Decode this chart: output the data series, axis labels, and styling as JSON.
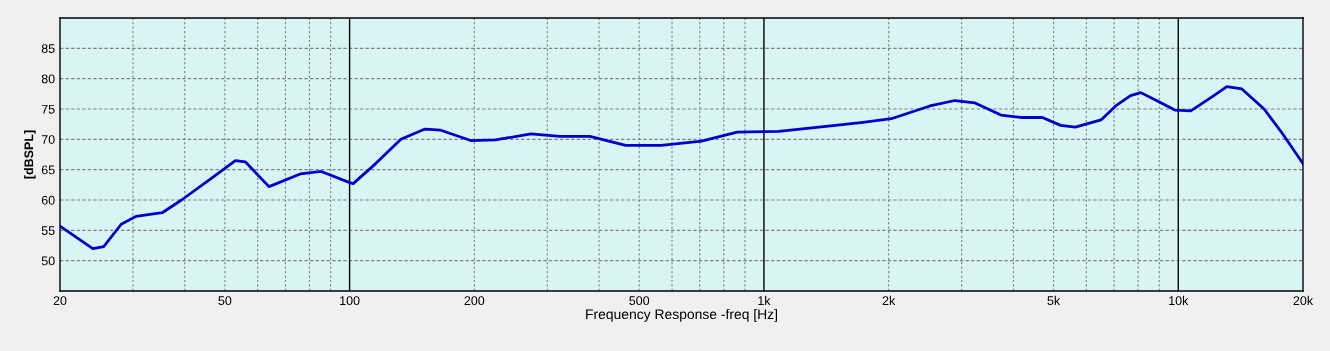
{
  "chart_data": {
    "type": "line",
    "xlabel": "Frequency Response -freq [Hz]",
    "ylabel": "[dBSPL]",
    "log": "x",
    "xlim": [
      20,
      20000
    ],
    "ylim": [
      45,
      90
    ],
    "xticks": [
      20,
      50,
      100,
      200,
      500,
      {
        "value": 1000,
        "label": "1k"
      },
      {
        "value": 2000,
        "label": "2k"
      },
      {
        "value": 5000,
        "label": "5k"
      },
      {
        "value": 10000,
        "label": "10k"
      },
      {
        "value": 20000,
        "label": "20k"
      }
    ],
    "yticks": [
      50,
      55,
      60,
      65,
      70,
      75,
      80,
      85
    ],
    "grid": true,
    "marker": "none",
    "line_style": "solid",
    "x": [
      20,
      24,
      25.5,
      28.1,
      30.5,
      35.3,
      39.3,
      46.2,
      53,
      56,
      63.9,
      76,
      85.4,
      99.7,
      102,
      115.6,
      133,
      152,
      166,
      196,
      225,
      274,
      322,
      380,
      464,
      565,
      707,
      862,
      1085,
      1394,
      1734,
      2030,
      2515,
      2890,
      3232,
      3733,
      4165,
      4700,
      5200,
      5640,
      6510,
      7060,
      7670,
      8120,
      8810,
      9840,
      10720,
      12060,
      13100,
      14240,
      16110,
      17820,
      20000
    ],
    "series": [
      {
        "color": "#0000cc",
        "values": [
          55.7,
          52,
          52.3,
          56,
          57.3,
          57.9,
          60,
          63.5,
          66.5,
          66.3,
          62.2,
          64.3,
          64.7,
          62.9,
          62.7,
          66,
          70,
          71.7,
          71.5,
          69.8,
          69.9,
          70.9,
          70.5,
          70.5,
          69,
          69,
          69.7,
          71.2,
          71.3,
          72.1,
          72.8,
          73.4,
          75.5,
          76.4,
          76,
          74,
          73.6,
          73.6,
          72.3,
          72,
          73.2,
          75.5,
          77.2,
          77.7,
          76.5,
          74.8,
          74.7,
          77,
          78.7,
          78.3,
          75,
          71,
          66
        ]
      }
    ]
  }
}
